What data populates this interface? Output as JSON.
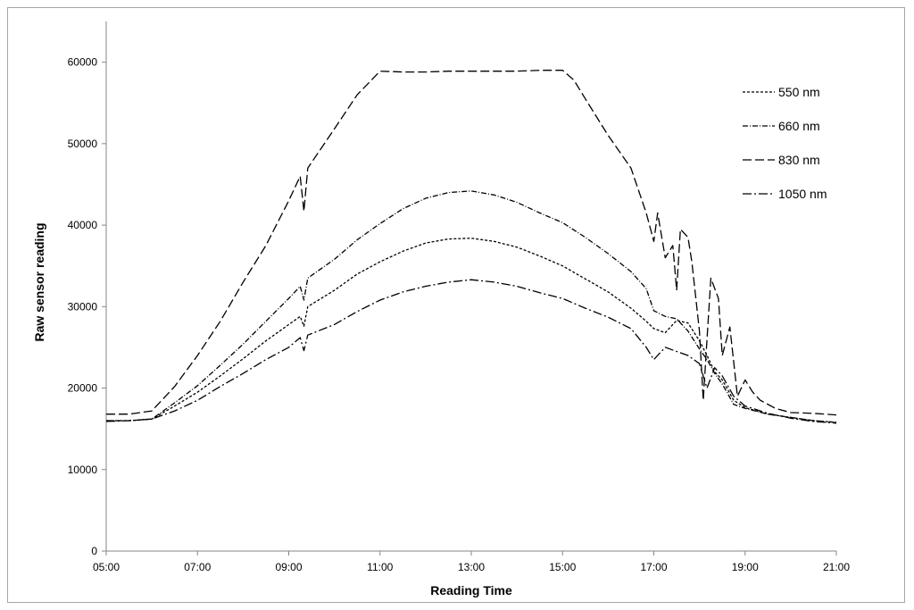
{
  "chart_data": {
    "type": "line",
    "title": "",
    "xlabel": "Reading Time",
    "ylabel": "Raw sensor reading",
    "x_ticks": [
      "05:00",
      "07:00",
      "09:00",
      "11:00",
      "13:00",
      "15:00",
      "17:00",
      "19:00",
      "21:00"
    ],
    "xlim": [
      "05:00",
      "21:00"
    ],
    "ylim": [
      0,
      65000
    ],
    "y_ticks": [
      0,
      10000,
      20000,
      30000,
      40000,
      50000,
      60000
    ],
    "grid": false,
    "legend_position": "top-right",
    "series": [
      {
        "name": "550 nm",
        "dash": "3,2",
        "points": [
          [
            "05:00",
            16000
          ],
          [
            "05:30",
            16000
          ],
          [
            "06:00",
            16200
          ],
          [
            "06:30",
            17800
          ],
          [
            "07:00",
            19500
          ],
          [
            "07:30",
            21500
          ],
          [
            "08:00",
            23600
          ],
          [
            "08:30",
            25800
          ],
          [
            "09:00",
            27800
          ],
          [
            "09:15",
            28800
          ],
          [
            "09:20",
            27600
          ],
          [
            "09:25",
            30000
          ],
          [
            "10:00",
            32000
          ],
          [
            "10:30",
            34000
          ],
          [
            "11:00",
            35500
          ],
          [
            "11:30",
            36800
          ],
          [
            "12:00",
            37800
          ],
          [
            "12:30",
            38300
          ],
          [
            "13:00",
            38400
          ],
          [
            "13:30",
            38000
          ],
          [
            "14:00",
            37300
          ],
          [
            "14:30",
            36200
          ],
          [
            "15:00",
            35000
          ],
          [
            "15:30",
            33400
          ],
          [
            "16:00",
            31800
          ],
          [
            "16:30",
            29800
          ],
          [
            "16:50",
            28200
          ],
          [
            "17:00",
            27300
          ],
          [
            "17:15",
            26800
          ],
          [
            "17:30",
            28300
          ],
          [
            "17:45",
            28000
          ],
          [
            "18:00",
            25800
          ],
          [
            "18:10",
            24000
          ],
          [
            "18:20",
            22000
          ],
          [
            "18:30",
            21000
          ],
          [
            "18:45",
            18500
          ],
          [
            "19:00",
            17600
          ],
          [
            "19:30",
            16800
          ],
          [
            "20:00",
            16400
          ],
          [
            "20:30",
            16000
          ],
          [
            "21:00",
            15800
          ]
        ]
      },
      {
        "name": "660 nm",
        "dash": "6,2,1,2",
        "points": [
          [
            "05:00",
            16000
          ],
          [
            "05:30",
            16000
          ],
          [
            "06:00",
            16200
          ],
          [
            "06:30",
            18200
          ],
          [
            "07:00",
            20300
          ],
          [
            "07:30",
            22800
          ],
          [
            "08:00",
            25400
          ],
          [
            "08:30",
            28200
          ],
          [
            "09:00",
            31000
          ],
          [
            "09:15",
            32500
          ],
          [
            "09:20",
            30800
          ],
          [
            "09:25",
            33500
          ],
          [
            "10:00",
            35800
          ],
          [
            "10:30",
            38200
          ],
          [
            "11:00",
            40200
          ],
          [
            "11:30",
            42000
          ],
          [
            "12:00",
            43300
          ],
          [
            "12:30",
            44000
          ],
          [
            "13:00",
            44200
          ],
          [
            "13:30",
            43700
          ],
          [
            "14:00",
            42800
          ],
          [
            "14:30",
            41500
          ],
          [
            "15:00",
            40300
          ],
          [
            "15:30",
            38500
          ],
          [
            "16:00",
            36500
          ],
          [
            "16:30",
            34300
          ],
          [
            "16:50",
            32200
          ],
          [
            "17:00",
            29500
          ],
          [
            "17:15",
            28800
          ],
          [
            "17:30",
            28500
          ],
          [
            "17:45",
            27000
          ],
          [
            "18:00",
            24800
          ],
          [
            "18:10",
            23500
          ],
          [
            "18:20",
            21800
          ],
          [
            "18:30",
            20500
          ],
          [
            "18:45",
            18000
          ],
          [
            "19:00",
            17500
          ],
          [
            "19:30",
            16800
          ],
          [
            "20:00",
            16400
          ],
          [
            "20:30",
            16000
          ],
          [
            "21:00",
            15800
          ]
        ]
      },
      {
        "name": "830 nm",
        "dash": "10,4",
        "points": [
          [
            "05:00",
            16800
          ],
          [
            "05:30",
            16800
          ],
          [
            "06:00",
            17200
          ],
          [
            "06:30",
            20200
          ],
          [
            "07:00",
            24000
          ],
          [
            "07:30",
            28200
          ],
          [
            "08:00",
            33000
          ],
          [
            "08:30",
            37500
          ],
          [
            "09:00",
            43000
          ],
          [
            "09:15",
            46000
          ],
          [
            "09:20",
            41700
          ],
          [
            "09:25",
            47000
          ],
          [
            "10:00",
            51800
          ],
          [
            "10:30",
            56000
          ],
          [
            "11:00",
            58900
          ],
          [
            "11:30",
            58800
          ],
          [
            "12:00",
            58800
          ],
          [
            "12:30",
            58900
          ],
          [
            "13:00",
            58900
          ],
          [
            "13:30",
            58900
          ],
          [
            "14:00",
            58900
          ],
          [
            "14:30",
            59000
          ],
          [
            "15:00",
            59000
          ],
          [
            "15:15",
            57800
          ],
          [
            "15:30",
            55500
          ],
          [
            "16:00",
            51000
          ],
          [
            "16:30",
            47000
          ],
          [
            "16:50",
            41500
          ],
          [
            "17:00",
            38000
          ],
          [
            "17:05",
            41500
          ],
          [
            "17:15",
            36000
          ],
          [
            "17:25",
            37500
          ],
          [
            "17:30",
            32000
          ],
          [
            "17:35",
            39500
          ],
          [
            "17:45",
            38500
          ],
          [
            "17:50",
            35500
          ],
          [
            "18:00",
            27000
          ],
          [
            "18:05",
            18500
          ],
          [
            "18:10",
            26000
          ],
          [
            "18:15",
            33500
          ],
          [
            "18:25",
            31000
          ],
          [
            "18:30",
            24000
          ],
          [
            "18:40",
            27500
          ],
          [
            "18:50",
            19000
          ],
          [
            "19:00",
            21000
          ],
          [
            "19:10",
            19500
          ],
          [
            "19:20",
            18500
          ],
          [
            "19:40",
            17500
          ],
          [
            "20:00",
            17000
          ],
          [
            "20:30",
            16900
          ],
          [
            "21:00",
            16700
          ]
        ]
      },
      {
        "name": "1050 nm",
        "dash": "10,3,2,3",
        "points": [
          [
            "05:00",
            15900
          ],
          [
            "05:30",
            16000
          ],
          [
            "06:00",
            16200
          ],
          [
            "06:30",
            17200
          ],
          [
            "07:00",
            18500
          ],
          [
            "07:30",
            20200
          ],
          [
            "08:00",
            21800
          ],
          [
            "08:30",
            23500
          ],
          [
            "09:00",
            25000
          ],
          [
            "09:15",
            26200
          ],
          [
            "09:20",
            24600
          ],
          [
            "09:25",
            26500
          ],
          [
            "10:00",
            27800
          ],
          [
            "10:30",
            29400
          ],
          [
            "11:00",
            30800
          ],
          [
            "11:30",
            31800
          ],
          [
            "12:00",
            32500
          ],
          [
            "12:30",
            33000
          ],
          [
            "13:00",
            33300
          ],
          [
            "13:30",
            33000
          ],
          [
            "14:00",
            32500
          ],
          [
            "14:30",
            31700
          ],
          [
            "15:00",
            31000
          ],
          [
            "15:30",
            29800
          ],
          [
            "16:00",
            28700
          ],
          [
            "16:30",
            27300
          ],
          [
            "16:50",
            25000
          ],
          [
            "17:00",
            23500
          ],
          [
            "17:15",
            25000
          ],
          [
            "17:30",
            24500
          ],
          [
            "17:45",
            24000
          ],
          [
            "18:00",
            23000
          ],
          [
            "18:10",
            20000
          ],
          [
            "18:20",
            22500
          ],
          [
            "18:30",
            21500
          ],
          [
            "18:45",
            19000
          ],
          [
            "19:00",
            17800
          ],
          [
            "19:30",
            16900
          ],
          [
            "20:00",
            16300
          ],
          [
            "20:30",
            15900
          ],
          [
            "21:00",
            15700
          ]
        ]
      }
    ]
  }
}
